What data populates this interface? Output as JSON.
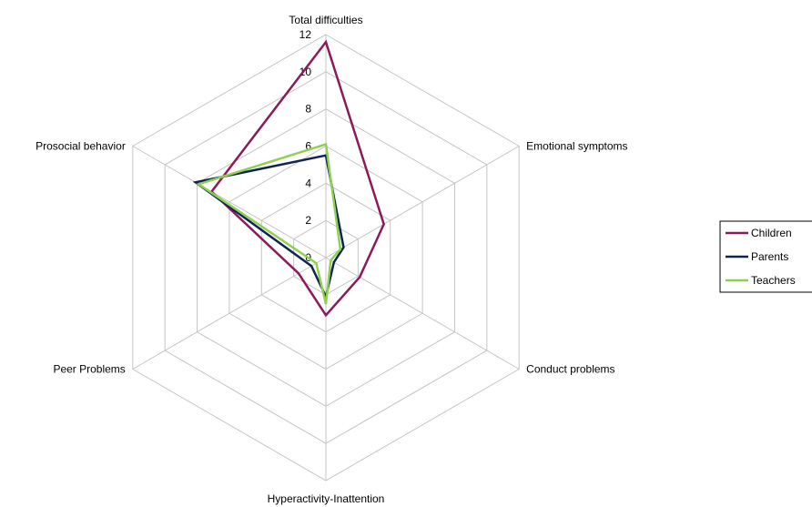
{
  "chart_data": {
    "type": "radar",
    "categories": [
      "Total difficulties",
      "Emotional symptoms",
      "Conduct problems",
      "Hyperactivity-Inattention",
      "Peer Problems",
      "Prosocial behavior"
    ],
    "ticks": [
      "0",
      "2",
      "4",
      "6",
      "8",
      "10",
      "12"
    ],
    "rlim": [
      0,
      12
    ],
    "grid": true,
    "legend_position": "right",
    "series": [
      {
        "name": "Children",
        "color": "#8b1a5a",
        "values": [
          11.6,
          3.6,
          2.1,
          3.1,
          1.7,
          7.1
        ]
      },
      {
        "name": "Parents",
        "color": "#0f2454",
        "values": [
          5.5,
          1.1,
          0.5,
          2.1,
          0.9,
          8.1
        ]
      },
      {
        "name": "Teachers",
        "color": "#8fd14f",
        "values": [
          6.1,
          0.9,
          0.3,
          2.5,
          0.6,
          7.9
        ]
      }
    ]
  }
}
